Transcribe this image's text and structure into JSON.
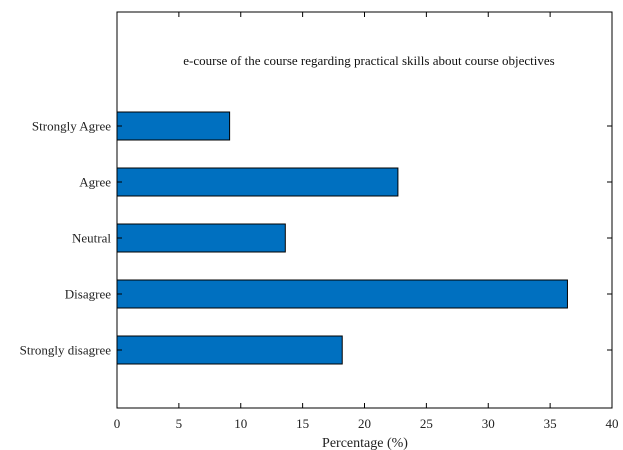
{
  "chart_data": {
    "type": "bar",
    "orientation": "horizontal",
    "title": "e-course of the course regarding practical skills about course objectives",
    "xlabel": "Percentage (%)",
    "ylabel": "",
    "categories": [
      "Strongly Agree",
      "Agree",
      "Neutral",
      "Disagree",
      "Strongly disagree"
    ],
    "values": [
      9.1,
      22.7,
      13.6,
      36.4,
      18.2
    ],
    "xlim": [
      0,
      40
    ],
    "xticks": [
      0,
      5,
      10,
      15,
      20,
      25,
      30,
      35,
      40
    ],
    "grid": false,
    "legend": "none",
    "bar_color": "#0070C0"
  }
}
